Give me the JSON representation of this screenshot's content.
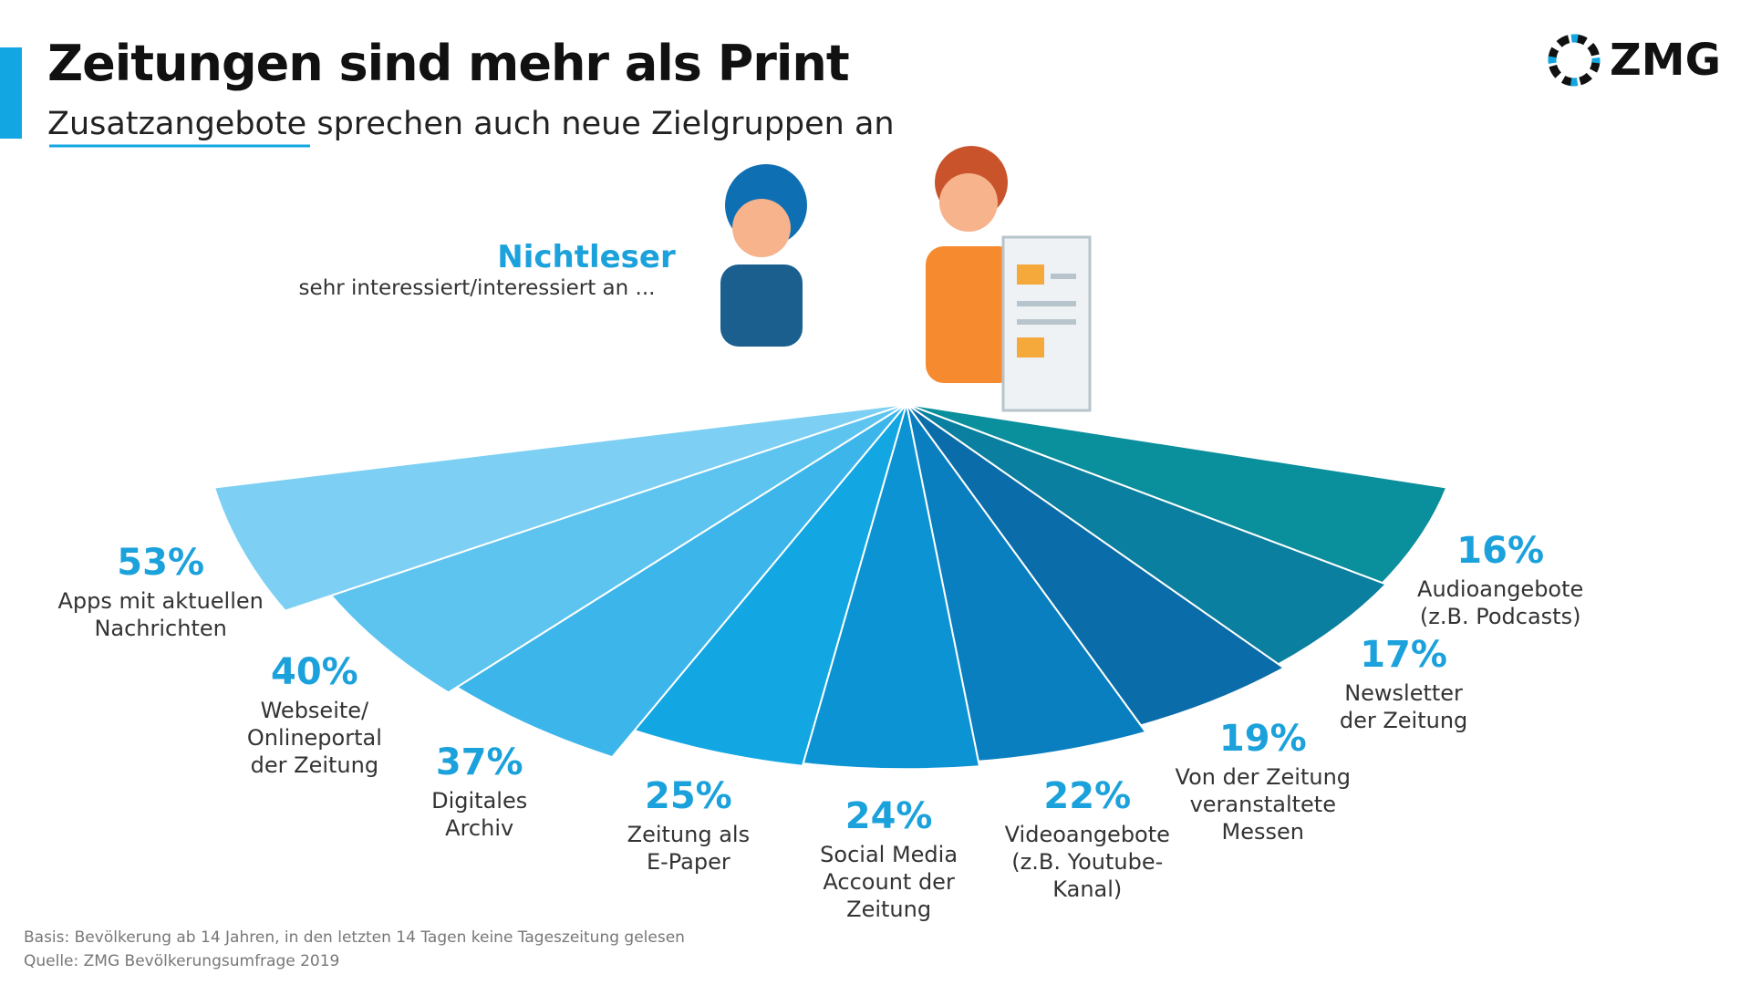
{
  "chart_data": {
    "type": "fan",
    "title": "Zeitungen sind mehr als Print",
    "subtitle": "Zusatzangebote sprechen auch neue Zielgruppen an",
    "group_label": "Nichtleser",
    "group_sublabel": "sehr interessiert/interessiert an ...",
    "categories": [
      "Apps mit aktuellen\nNachrichten",
      "Webseite/\nOnlineportal\nder Zeitung",
      "Digitales\nArchiv",
      "Zeitung als\nE-Paper",
      "Social Media\nAccount der\nZeitung",
      "Videoangebote\n(z.B. Youtube-\nKanal)",
      "Von der Zeitung\nveranstaltete\nMessen",
      "Newsletter\nder Zeitung",
      "Audioangebote\n(z.B. Podcasts)"
    ],
    "values": [
      53,
      40,
      37,
      25,
      24,
      22,
      19,
      17,
      16
    ],
    "value_labels": [
      "53%",
      "40%",
      "37%",
      "25%",
      "24%",
      "22%",
      "19%",
      "17%",
      "16%"
    ],
    "colors": [
      "#7dd0f3",
      "#5cc4ef",
      "#3cb6ea",
      "#12a7e2",
      "#0b93d3",
      "#0a7fc0",
      "#0a6ca8",
      "#0a7f9f",
      "#0a8f9c"
    ],
    "notes": [
      "Basis: Bevölkerung ab 14 Jahren, in den letzten 14 Tagen keine Tageszeitung gelesen",
      "Quelle: ZMG Bevölkerungsumfrage 2019"
    ]
  },
  "logo": "ZMG"
}
